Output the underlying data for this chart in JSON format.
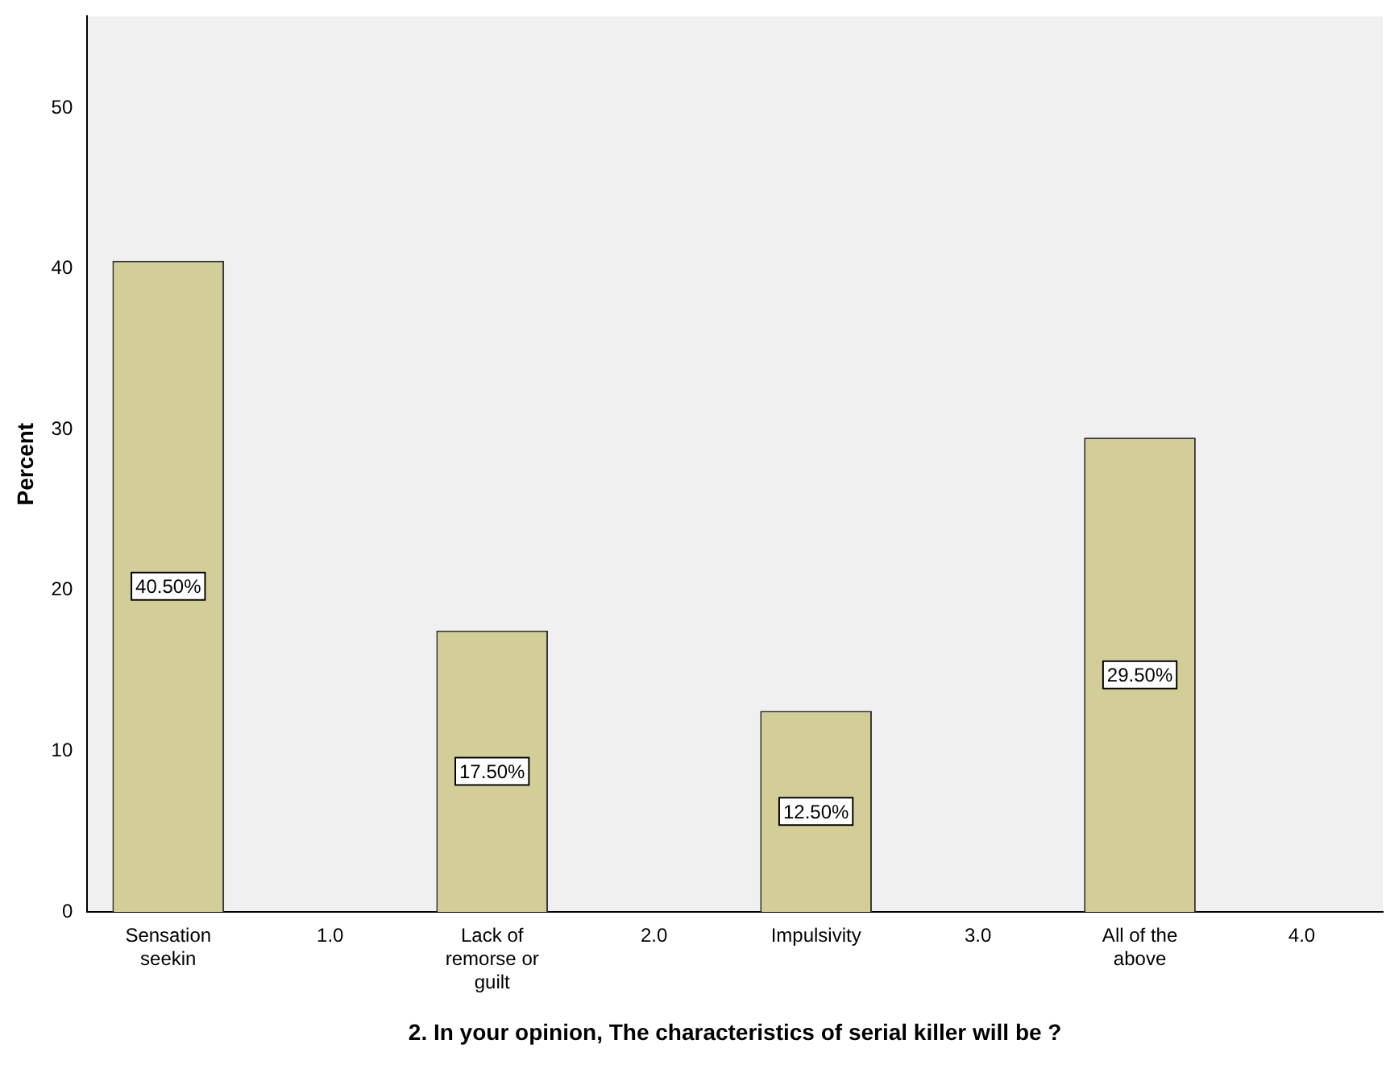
{
  "chart_data": {
    "type": "bar",
    "xlabel": "2. In your opinion, The characteristics of serial killer will be ?",
    "ylabel": "Percent",
    "categories": [
      "Sensation seekin",
      "1.0",
      "Lack of remorse or guilt",
      "2.0",
      "Impulsivity",
      "3.0",
      "All of the above",
      "4.0"
    ],
    "values": [
      40.5,
      null,
      17.5,
      null,
      12.5,
      null,
      29.5,
      null
    ],
    "value_labels": [
      "40.50%",
      null,
      "17.50%",
      null,
      "12.50%",
      null,
      "29.50%",
      null
    ],
    "color": "#d3ce97",
    "ylim": [
      0,
      55.7
    ],
    "yticks": [
      0,
      10,
      20,
      30,
      40,
      50
    ],
    "grid": false,
    "legend": false
  }
}
